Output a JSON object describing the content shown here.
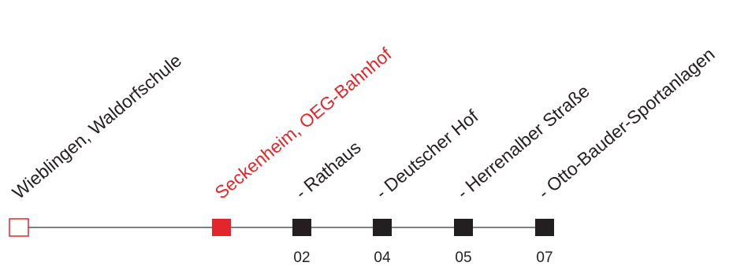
{
  "colors": {
    "line": "#000000",
    "current": "#e3262b",
    "stop": "#231f20",
    "start_border": "#e3262b",
    "text": "#231f20"
  },
  "route": {
    "stops": [
      {
        "name": "Wieblingen, Waldorfschule",
        "number": "",
        "style": "start"
      },
      {
        "name": "Seckenheim, OEG-Bahnhof",
        "number": "",
        "style": "current"
      },
      {
        "name": "- Rathaus",
        "number": "02",
        "style": "stop"
      },
      {
        "name": "- Deutscher Hof",
        "number": "04",
        "style": "stop"
      },
      {
        "name": "- Herrenalber Straße",
        "number": "05",
        "style": "stop"
      },
      {
        "name": "- Otto-Bauder-Sportanlagen",
        "number": "07",
        "style": "stop"
      }
    ]
  }
}
